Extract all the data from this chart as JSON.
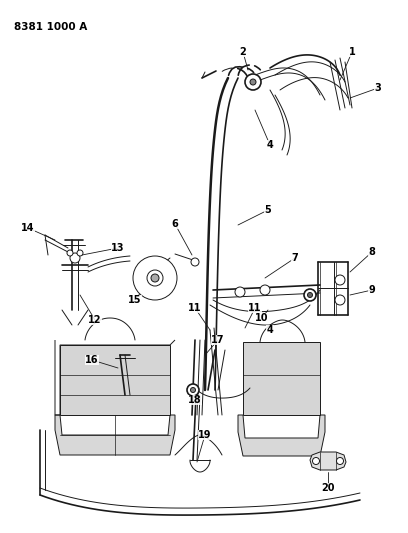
{
  "title": "8381 1000 A",
  "bg_color": "#ffffff",
  "line_color": "#1a1a1a",
  "text_color": "#000000",
  "fig_width": 4.08,
  "fig_height": 5.33,
  "dpi": 100
}
